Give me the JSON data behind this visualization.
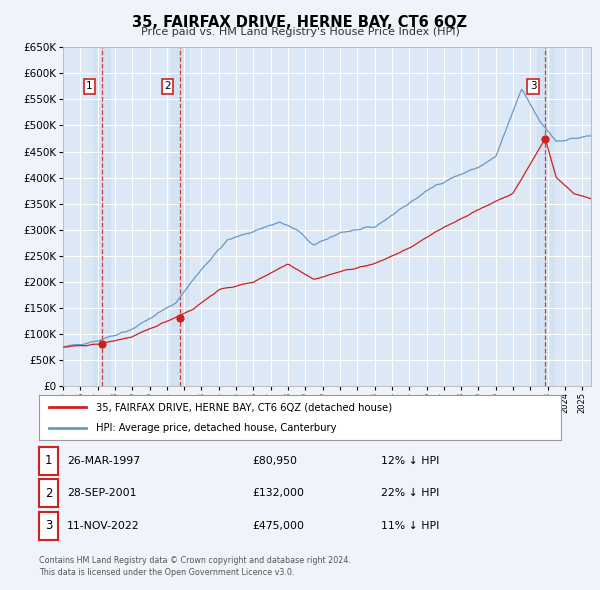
{
  "title": "35, FAIRFAX DRIVE, HERNE BAY, CT6 6QZ",
  "subtitle": "Price paid vs. HM Land Registry's House Price Index (HPI)",
  "bg_color": "#f0f4fa",
  "plot_bg_color": "#dce8f5",
  "grid_color": "#ffffff",
  "hpi_color": "#6699cc",
  "price_color": "#cc2222",
  "vline_color": "#cc2222",
  "ylim": [
    0,
    650000
  ],
  "yticks": [
    0,
    50000,
    100000,
    150000,
    200000,
    250000,
    300000,
    350000,
    400000,
    450000,
    500000,
    550000,
    600000,
    650000
  ],
  "xlim_start": 1995.0,
  "xlim_end": 2025.5,
  "sale_dates": [
    1997.23,
    2001.74,
    2022.86
  ],
  "sale_prices": [
    80950,
    132000,
    475000
  ],
  "sale_labels": [
    "1",
    "2",
    "3"
  ],
  "vline_x": [
    1997.23,
    2001.74,
    2022.86
  ],
  "legend_line1": "35, FAIRFAX DRIVE, HERNE BAY, CT6 6QZ (detached house)",
  "legend_line2": "HPI: Average price, detached house, Canterbury",
  "table_rows": [
    {
      "num": "1",
      "date": "26-MAR-1997",
      "price": "£80,950",
      "note": "12% ↓ HPI"
    },
    {
      "num": "2",
      "date": "28-SEP-2001",
      "price": "£132,000",
      "note": "22% ↓ HPI"
    },
    {
      "num": "3",
      "date": "11-NOV-2022",
      "price": "£475,000",
      "note": "11% ↓ HPI"
    }
  ],
  "footnote1": "Contains HM Land Registry data © Crown copyright and database right 2024.",
  "footnote2": "This data is licensed under the Open Government Licence v3.0.",
  "hpi_key_years": [
    1995.0,
    1997.0,
    1999.0,
    2001.5,
    2003.0,
    2004.5,
    2007.5,
    2008.5,
    2009.5,
    2011.0,
    2013.0,
    2014.5,
    2016.5,
    2017.5,
    2019.0,
    2020.0,
    2021.5,
    2022.5,
    2023.5,
    2025.5
  ],
  "hpi_key_vals": [
    75000,
    88000,
    110000,
    160000,
    225000,
    280000,
    315000,
    300000,
    270000,
    295000,
    305000,
    340000,
    385000,
    400000,
    420000,
    440000,
    570000,
    510000,
    470000,
    480000
  ],
  "price_key_years": [
    1995.0,
    1997.0,
    1999.0,
    2001.0,
    2002.5,
    2004.0,
    2006.0,
    2008.0,
    2009.5,
    2011.0,
    2013.0,
    2015.0,
    2017.0,
    2018.5,
    2020.0,
    2021.0,
    2022.86,
    2023.5,
    2024.5,
    2025.5
  ],
  "price_key_vals": [
    75000,
    80950,
    95000,
    125000,
    148000,
    185000,
    200000,
    235000,
    205000,
    220000,
    235000,
    265000,
    305000,
    330000,
    355000,
    370000,
    475000,
    400000,
    370000,
    360000
  ]
}
